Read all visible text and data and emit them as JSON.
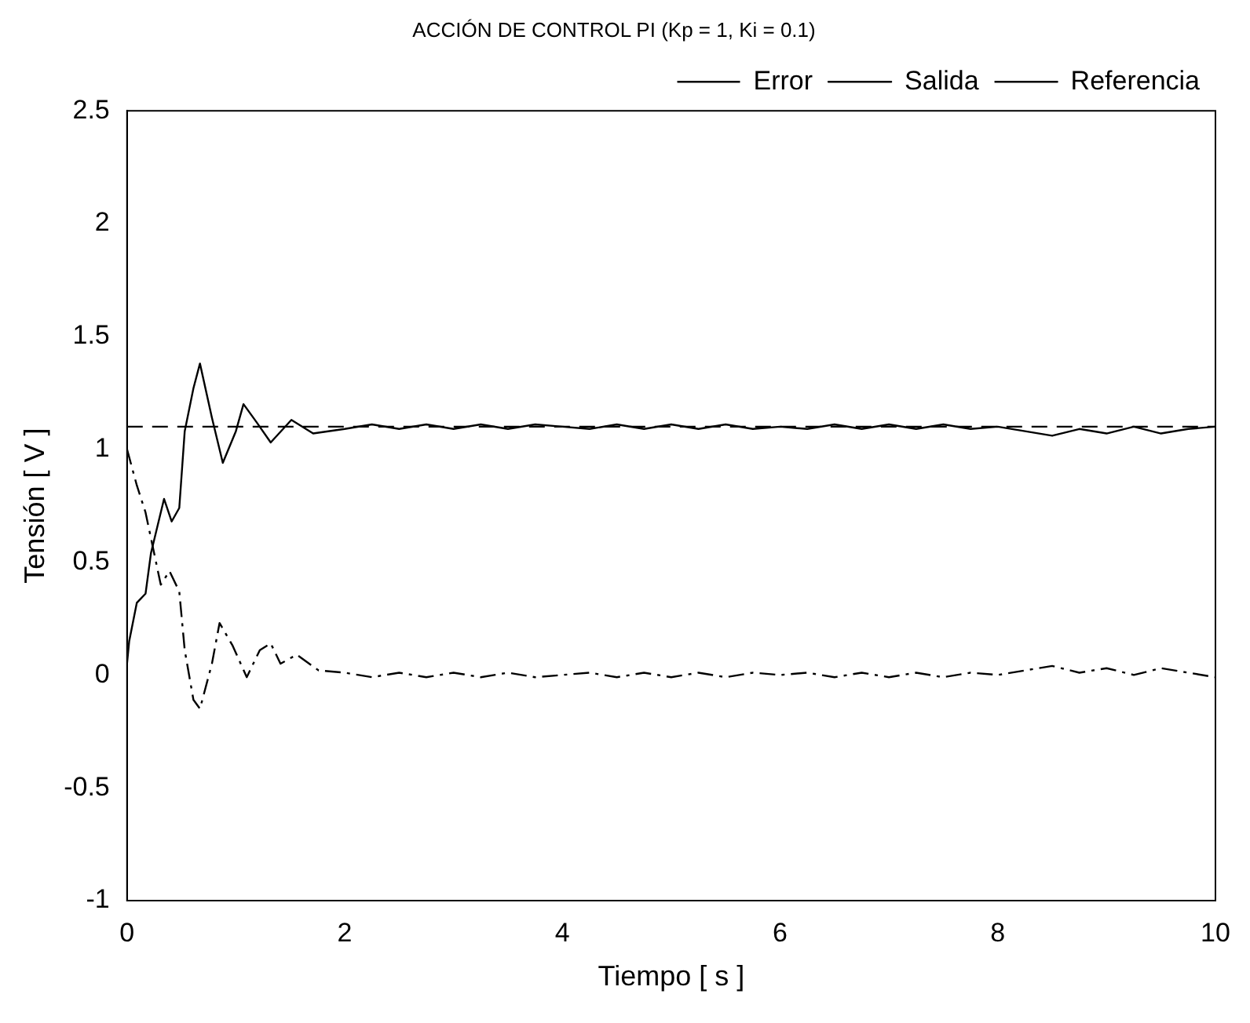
{
  "chart_data": {
    "type": "line",
    "title": "ACCIÓN DE CONTROL PI (Kp = 1, Ki = 0.1)",
    "xlabel": "Tiempo [ s ]",
    "ylabel": "Tensión [ V ]",
    "xlim": [
      0,
      10
    ],
    "ylim": [
      -1,
      2.5
    ],
    "xticks": [
      0,
      2,
      4,
      6,
      8,
      10
    ],
    "yticks": [
      -1,
      -0.5,
      0,
      0.5,
      1,
      1.5,
      2,
      2.5
    ],
    "grid": false,
    "legend": "top right",
    "marker": "none",
    "series": [
      {
        "name": "Error",
        "color": "#000000",
        "line_style": "dashdot",
        "x": [
          0,
          0.09,
          0.17,
          0.24,
          0.31,
          0.39,
          0.48,
          0.53,
          0.61,
          0.67,
          0.78,
          0.85,
          0.97,
          1.1,
          1.22,
          1.32,
          1.41,
          1.56,
          1.76,
          2,
          2.25,
          2.5,
          2.75,
          3,
          3.25,
          3.5,
          3.75,
          4,
          4.25,
          4.5,
          4.75,
          5,
          5.25,
          5.5,
          5.75,
          6,
          6.25,
          6.5,
          6.75,
          7,
          7.25,
          7.5,
          7.75,
          8,
          8.25,
          8.5,
          8.75,
          9,
          9.25,
          9.5,
          9.75,
          10
        ],
        "values": [
          1.0,
          0.84,
          0.72,
          0.56,
          0.4,
          0.46,
          0.37,
          0.11,
          -0.11,
          -0.15,
          0.05,
          0.23,
          0.13,
          -0.01,
          0.11,
          0.14,
          0.05,
          0.09,
          0.02,
          0.01,
          -0.01,
          0.01,
          -0.01,
          0.01,
          -0.01,
          0.01,
          -0.01,
          0.0,
          0.01,
          -0.01,
          0.01,
          -0.01,
          0.01,
          -0.01,
          0.01,
          0.0,
          0.01,
          -0.01,
          0.01,
          -0.01,
          0.01,
          -0.01,
          0.01,
          0.0,
          0.02,
          0.04,
          0.01,
          0.03,
          0.0,
          0.03,
          0.01,
          -0.01
        ]
      },
      {
        "name": "Salida",
        "color": "#000000",
        "line_style": "solid",
        "x": [
          0,
          0.02,
          0.09,
          0.17,
          0.22,
          0.34,
          0.41,
          0.48,
          0.53,
          0.61,
          0.67,
          0.78,
          0.88,
          1.0,
          1.07,
          1.19,
          1.32,
          1.51,
          1.71,
          2,
          2.25,
          2.5,
          2.75,
          3,
          3.25,
          3.5,
          3.75,
          4,
          4.25,
          4.5,
          4.75,
          5,
          5.25,
          5.5,
          5.75,
          6,
          6.25,
          6.5,
          6.75,
          7,
          7.25,
          7.5,
          7.75,
          8,
          8.25,
          8.5,
          8.75,
          9,
          9.25,
          9.5,
          9.75,
          10
        ],
        "values": [
          0.05,
          0.15,
          0.32,
          0.36,
          0.54,
          0.78,
          0.68,
          0.74,
          1.08,
          1.27,
          1.38,
          1.14,
          0.94,
          1.08,
          1.2,
          1.12,
          1.03,
          1.13,
          1.07,
          1.09,
          1.11,
          1.09,
          1.11,
          1.09,
          1.11,
          1.09,
          1.11,
          1.1,
          1.09,
          1.11,
          1.09,
          1.11,
          1.09,
          1.11,
          1.09,
          1.1,
          1.09,
          1.11,
          1.09,
          1.11,
          1.09,
          1.11,
          1.09,
          1.1,
          1.08,
          1.06,
          1.09,
          1.07,
          1.1,
          1.07,
          1.09,
          1.1
        ]
      },
      {
        "name": "Referencia",
        "color": "#000000",
        "line_style": "dashed",
        "x": [
          0,
          10
        ],
        "values": [
          1.1,
          1.1
        ]
      }
    ]
  }
}
